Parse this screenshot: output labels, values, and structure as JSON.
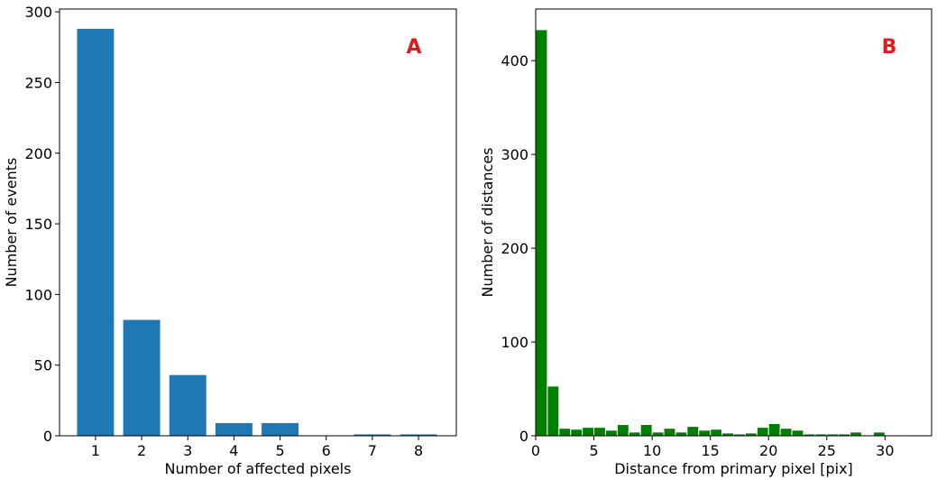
{
  "chart_data": [
    {
      "type": "bar",
      "annotation": "A",
      "annotation_color": "#e31a1c",
      "xlabel": "Number of affected pixels",
      "ylabel": "Number of events",
      "x": [
        1,
        2,
        3,
        4,
        5,
        6,
        7,
        8
      ],
      "values": [
        288,
        82,
        43,
        9,
        9,
        0,
        1,
        1
      ],
      "color": "#1f77b4",
      "xlim": [
        0.22,
        8.82
      ],
      "xticks": [
        1,
        2,
        3,
        4,
        5,
        6,
        7,
        8
      ],
      "ylim": [
        0,
        302
      ],
      "yticks": [
        0,
        50,
        100,
        150,
        200,
        250,
        300
      ]
    },
    {
      "type": "histogram",
      "annotation": "B",
      "annotation_color": "#e31a1c",
      "xlabel": "Distance from primary pixel [pix]",
      "ylabel": "Number of distances",
      "bins": [
        0,
        1,
        2,
        3,
        4,
        5,
        6,
        7,
        8,
        9,
        10,
        11,
        12,
        13,
        14,
        15,
        16,
        17,
        18,
        19,
        20,
        21,
        22,
        23,
        24,
        25,
        26,
        27,
        28,
        29,
        30,
        31,
        32,
        33,
        34
      ],
      "values": [
        433,
        53,
        8,
        7,
        9,
        9,
        6,
        12,
        4,
        12,
        4,
        8,
        4,
        10,
        6,
        7,
        3,
        2,
        3,
        9,
        13,
        8,
        6,
        2,
        2,
        2,
        2,
        4,
        1,
        4,
        1,
        0,
        1,
        1
      ],
      "color": "#008000",
      "xlim": [
        0,
        34
      ],
      "xticks": [
        0,
        5,
        10,
        15,
        20,
        25,
        30
      ],
      "ylim": [
        0,
        455
      ],
      "yticks": [
        0,
        100,
        200,
        300,
        400
      ]
    }
  ]
}
